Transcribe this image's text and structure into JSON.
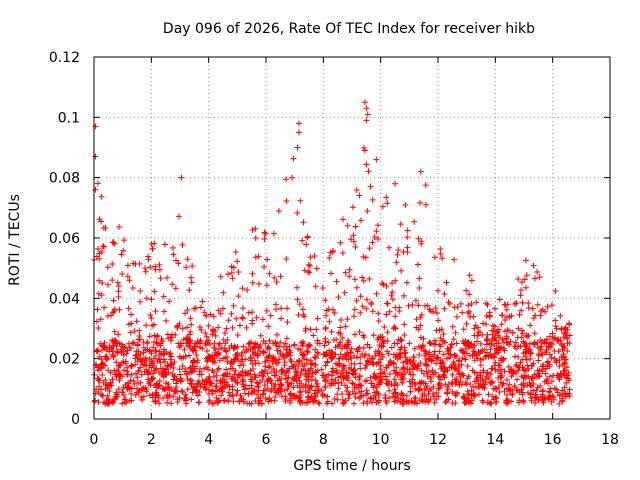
{
  "chart_data": {
    "type": "scatter",
    "title": "Day 096 of 2026, Rate Of TEC Index for receiver hikb",
    "xlabel": "GPS time / hours",
    "ylabel": "ROTI / TECUs",
    "xlim": [
      0,
      18
    ],
    "ylim": [
      0,
      0.12
    ],
    "x_ticks": [
      "0",
      "2",
      "4",
      "6",
      "8",
      "10",
      "12",
      "14",
      "16",
      "18"
    ],
    "y_ticks": [
      "0",
      "0.02",
      "0.04",
      "0.06",
      "0.08",
      "0.1",
      "0.12"
    ],
    "grid": true,
    "marker": "+",
    "color": "#ff0000",
    "data_x_range": [
      0,
      16.6
    ],
    "baseline_range": [
      0.005,
      0.025
    ],
    "envelope": [
      {
        "x": 0.0,
        "y": 0.097
      },
      {
        "x": 0.5,
        "y": 0.06
      },
      {
        "x": 1.0,
        "y": 0.068
      },
      {
        "x": 1.5,
        "y": 0.05
      },
      {
        "x": 2.0,
        "y": 0.058
      },
      {
        "x": 2.5,
        "y": 0.062
      },
      {
        "x": 3.0,
        "y": 0.08
      },
      {
        "x": 3.5,
        "y": 0.05
      },
      {
        "x": 4.0,
        "y": 0.032
      },
      {
        "x": 4.5,
        "y": 0.055
      },
      {
        "x": 5.0,
        "y": 0.058
      },
      {
        "x": 5.5,
        "y": 0.065
      },
      {
        "x": 6.0,
        "y": 0.066
      },
      {
        "x": 6.5,
        "y": 0.07
      },
      {
        "x": 7.0,
        "y": 0.098
      },
      {
        "x": 7.5,
        "y": 0.06
      },
      {
        "x": 8.0,
        "y": 0.052
      },
      {
        "x": 8.5,
        "y": 0.065
      },
      {
        "x": 9.0,
        "y": 0.075
      },
      {
        "x": 9.5,
        "y": 0.105
      },
      {
        "x": 10.0,
        "y": 0.08
      },
      {
        "x": 10.5,
        "y": 0.07
      },
      {
        "x": 11.0,
        "y": 0.075
      },
      {
        "x": 11.5,
        "y": 0.082
      },
      {
        "x": 12.0,
        "y": 0.058
      },
      {
        "x": 12.5,
        "y": 0.055
      },
      {
        "x": 13.0,
        "y": 0.05
      },
      {
        "x": 13.5,
        "y": 0.04
      },
      {
        "x": 14.0,
        "y": 0.038
      },
      {
        "x": 14.5,
        "y": 0.045
      },
      {
        "x": 15.0,
        "y": 0.057
      },
      {
        "x": 15.5,
        "y": 0.05
      },
      {
        "x": 16.0,
        "y": 0.045
      },
      {
        "x": 16.6,
        "y": 0.032
      }
    ],
    "outliers": [
      {
        "x": 0.05,
        "y": 0.097
      },
      {
        "x": 0.05,
        "y": 0.087
      },
      {
        "x": 0.05,
        "y": 0.076
      },
      {
        "x": 3.05,
        "y": 0.08
      },
      {
        "x": 7.15,
        "y": 0.098
      },
      {
        "x": 7.15,
        "y": 0.095
      },
      {
        "x": 7.1,
        "y": 0.09
      },
      {
        "x": 9.45,
        "y": 0.105
      },
      {
        "x": 9.5,
        "y": 0.103
      },
      {
        "x": 9.55,
        "y": 0.101
      },
      {
        "x": 9.5,
        "y": 0.099
      },
      {
        "x": 9.45,
        "y": 0.089
      },
      {
        "x": 9.85,
        "y": 0.086
      },
      {
        "x": 10.5,
        "y": 0.078
      },
      {
        "x": 11.4,
        "y": 0.082
      }
    ]
  }
}
